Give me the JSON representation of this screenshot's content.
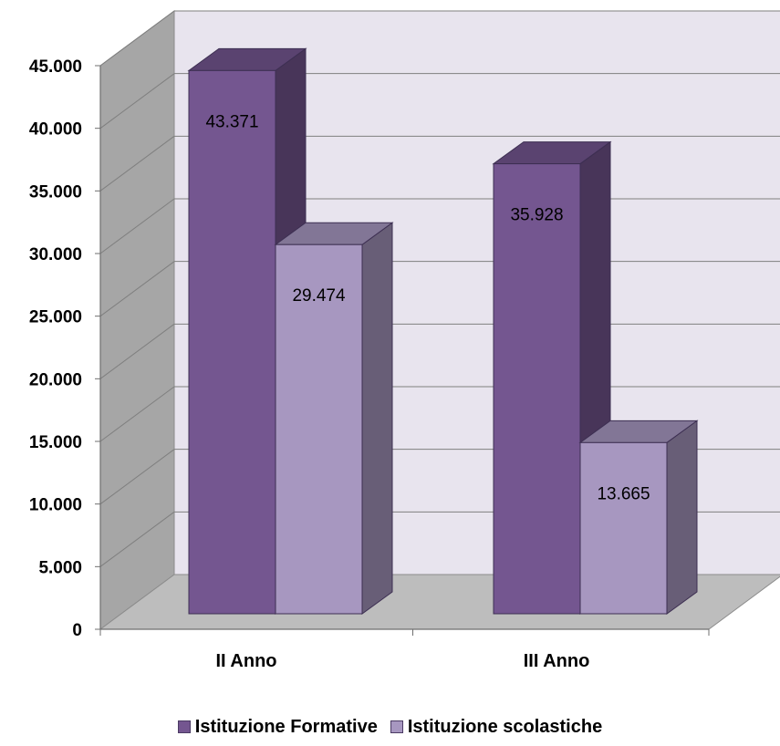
{
  "chart_data": {
    "type": "bar",
    "categories": [
      "II Anno",
      "III Anno"
    ],
    "series": [
      {
        "name": "Istituzione Formative",
        "values": [
          43371,
          35928
        ],
        "labels": [
          "43.371",
          "35.928"
        ],
        "color": "#745690"
      },
      {
        "name": "Istituzione scolastiche",
        "values": [
          29474,
          13665
        ],
        "labels": [
          "29.474",
          "13.665"
        ],
        "color": "#a797c0"
      }
    ],
    "ylim": [
      0,
      45000
    ],
    "yticks": [
      0,
      5000,
      10000,
      15000,
      20000,
      25000,
      30000,
      35000,
      40000,
      45000
    ],
    "ytick_labels": [
      "0",
      "5.000",
      "10.000",
      "15.000",
      "20.000",
      "25.000",
      "30.000",
      "35.000",
      "40.000",
      "45.000"
    ],
    "grid": true,
    "legend_position": "bottom",
    "style": "3d-clustered-column",
    "colors": {
      "back_wall": "#e8e4ee",
      "side_wall": "#a6a6a6",
      "floor": "#bdbdbd",
      "grid": "#7f7f7f"
    }
  }
}
